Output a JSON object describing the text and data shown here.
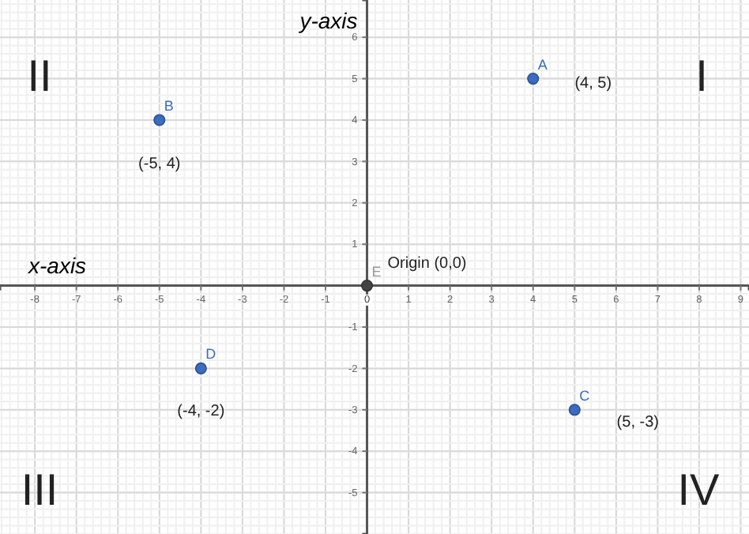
{
  "chart_data": {
    "type": "scatter",
    "xlabel": "x-axis",
    "ylabel": "y-axis",
    "xlim": [
      -8.84,
      9.2
    ],
    "ylim": [
      -6.0,
      6.9
    ],
    "xticks": [
      -8,
      -7,
      -6,
      -5,
      -4,
      -3,
      -2,
      -1,
      0,
      1,
      2,
      3,
      4,
      5,
      6,
      7,
      8,
      9
    ],
    "yticks": [
      -5,
      -4,
      -3,
      -2,
      -1,
      1,
      2,
      3,
      4,
      5,
      6
    ],
    "grid": true,
    "marker": "circle",
    "series": [
      {
        "name": "A",
        "color": "#3b6cc0",
        "x": [
          4
        ],
        "values": [
          5
        ]
      },
      {
        "name": "B",
        "color": "#3b6cc0",
        "x": [
          -5
        ],
        "values": [
          4
        ]
      },
      {
        "name": "C",
        "color": "#3b6cc0",
        "x": [
          5
        ],
        "values": [
          -3
        ]
      },
      {
        "name": "D",
        "color": "#3b6cc0",
        "x": [
          -4
        ],
        "values": [
          -2
        ]
      },
      {
        "name": "E",
        "color": "#444444",
        "x": [
          0
        ],
        "values": [
          0
        ]
      }
    ],
    "annotations": [
      "(4, 5)",
      "(-5, 4)",
      "(5, -3)",
      "(-4, -2)",
      "Origin (0,0)",
      "I",
      "II",
      "III",
      "IV"
    ]
  }
}
